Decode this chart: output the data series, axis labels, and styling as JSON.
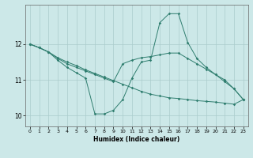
{
  "xlabel": "Humidex (Indice chaleur)",
  "bg_color": "#cce8e8",
  "grid_color": "#aacccc",
  "line_color": "#2e7d6e",
  "xlim": [
    -0.5,
    23.5
  ],
  "ylim": [
    9.7,
    13.0
  ],
  "yticks": [
    10,
    11,
    12
  ],
  "xticks": [
    0,
    1,
    2,
    3,
    4,
    5,
    6,
    7,
    8,
    9,
    10,
    11,
    12,
    13,
    14,
    15,
    16,
    17,
    18,
    19,
    20,
    21,
    22,
    23
  ],
  "series1": [
    [
      0,
      12.0
    ],
    [
      1,
      11.9
    ],
    [
      2,
      11.78
    ],
    [
      3,
      11.55
    ],
    [
      4,
      11.35
    ],
    [
      5,
      11.2
    ],
    [
      6,
      11.05
    ],
    [
      7,
      10.05
    ],
    [
      8,
      10.05
    ],
    [
      9,
      10.15
    ],
    [
      10,
      10.45
    ],
    [
      11,
      11.05
    ],
    [
      12,
      11.5
    ],
    [
      13,
      11.55
    ],
    [
      14,
      12.6
    ],
    [
      15,
      12.85
    ],
    [
      16,
      12.85
    ],
    [
      17,
      12.05
    ],
    [
      18,
      11.6
    ],
    [
      19,
      11.35
    ],
    [
      20,
      11.15
    ],
    [
      21,
      10.95
    ],
    [
      22,
      10.75
    ],
    [
      23,
      10.45
    ]
  ],
  "series2": [
    [
      0,
      12.0
    ],
    [
      1,
      11.9
    ],
    [
      2,
      11.78
    ],
    [
      3,
      11.6
    ],
    [
      4,
      11.45
    ],
    [
      5,
      11.35
    ],
    [
      6,
      11.25
    ],
    [
      7,
      11.15
    ],
    [
      8,
      11.05
    ],
    [
      9,
      10.95
    ],
    [
      10,
      11.45
    ],
    [
      11,
      11.55
    ],
    [
      12,
      11.62
    ],
    [
      13,
      11.65
    ],
    [
      14,
      11.7
    ],
    [
      15,
      11.75
    ],
    [
      16,
      11.75
    ],
    [
      17,
      11.6
    ],
    [
      18,
      11.45
    ],
    [
      19,
      11.3
    ],
    [
      20,
      11.15
    ],
    [
      21,
      11.0
    ],
    [
      22,
      10.75
    ],
    [
      23,
      10.45
    ]
  ],
  "series3": [
    [
      0,
      12.0
    ],
    [
      1,
      11.9
    ],
    [
      2,
      11.78
    ],
    [
      3,
      11.62
    ],
    [
      4,
      11.5
    ],
    [
      5,
      11.4
    ],
    [
      6,
      11.28
    ],
    [
      7,
      11.18
    ],
    [
      8,
      11.08
    ],
    [
      9,
      10.98
    ],
    [
      10,
      10.88
    ],
    [
      11,
      10.78
    ],
    [
      12,
      10.68
    ],
    [
      13,
      10.6
    ],
    [
      14,
      10.55
    ],
    [
      15,
      10.5
    ],
    [
      16,
      10.48
    ],
    [
      17,
      10.45
    ],
    [
      18,
      10.42
    ],
    [
      19,
      10.4
    ],
    [
      20,
      10.38
    ],
    [
      21,
      10.35
    ],
    [
      22,
      10.32
    ],
    [
      23,
      10.45
    ]
  ]
}
